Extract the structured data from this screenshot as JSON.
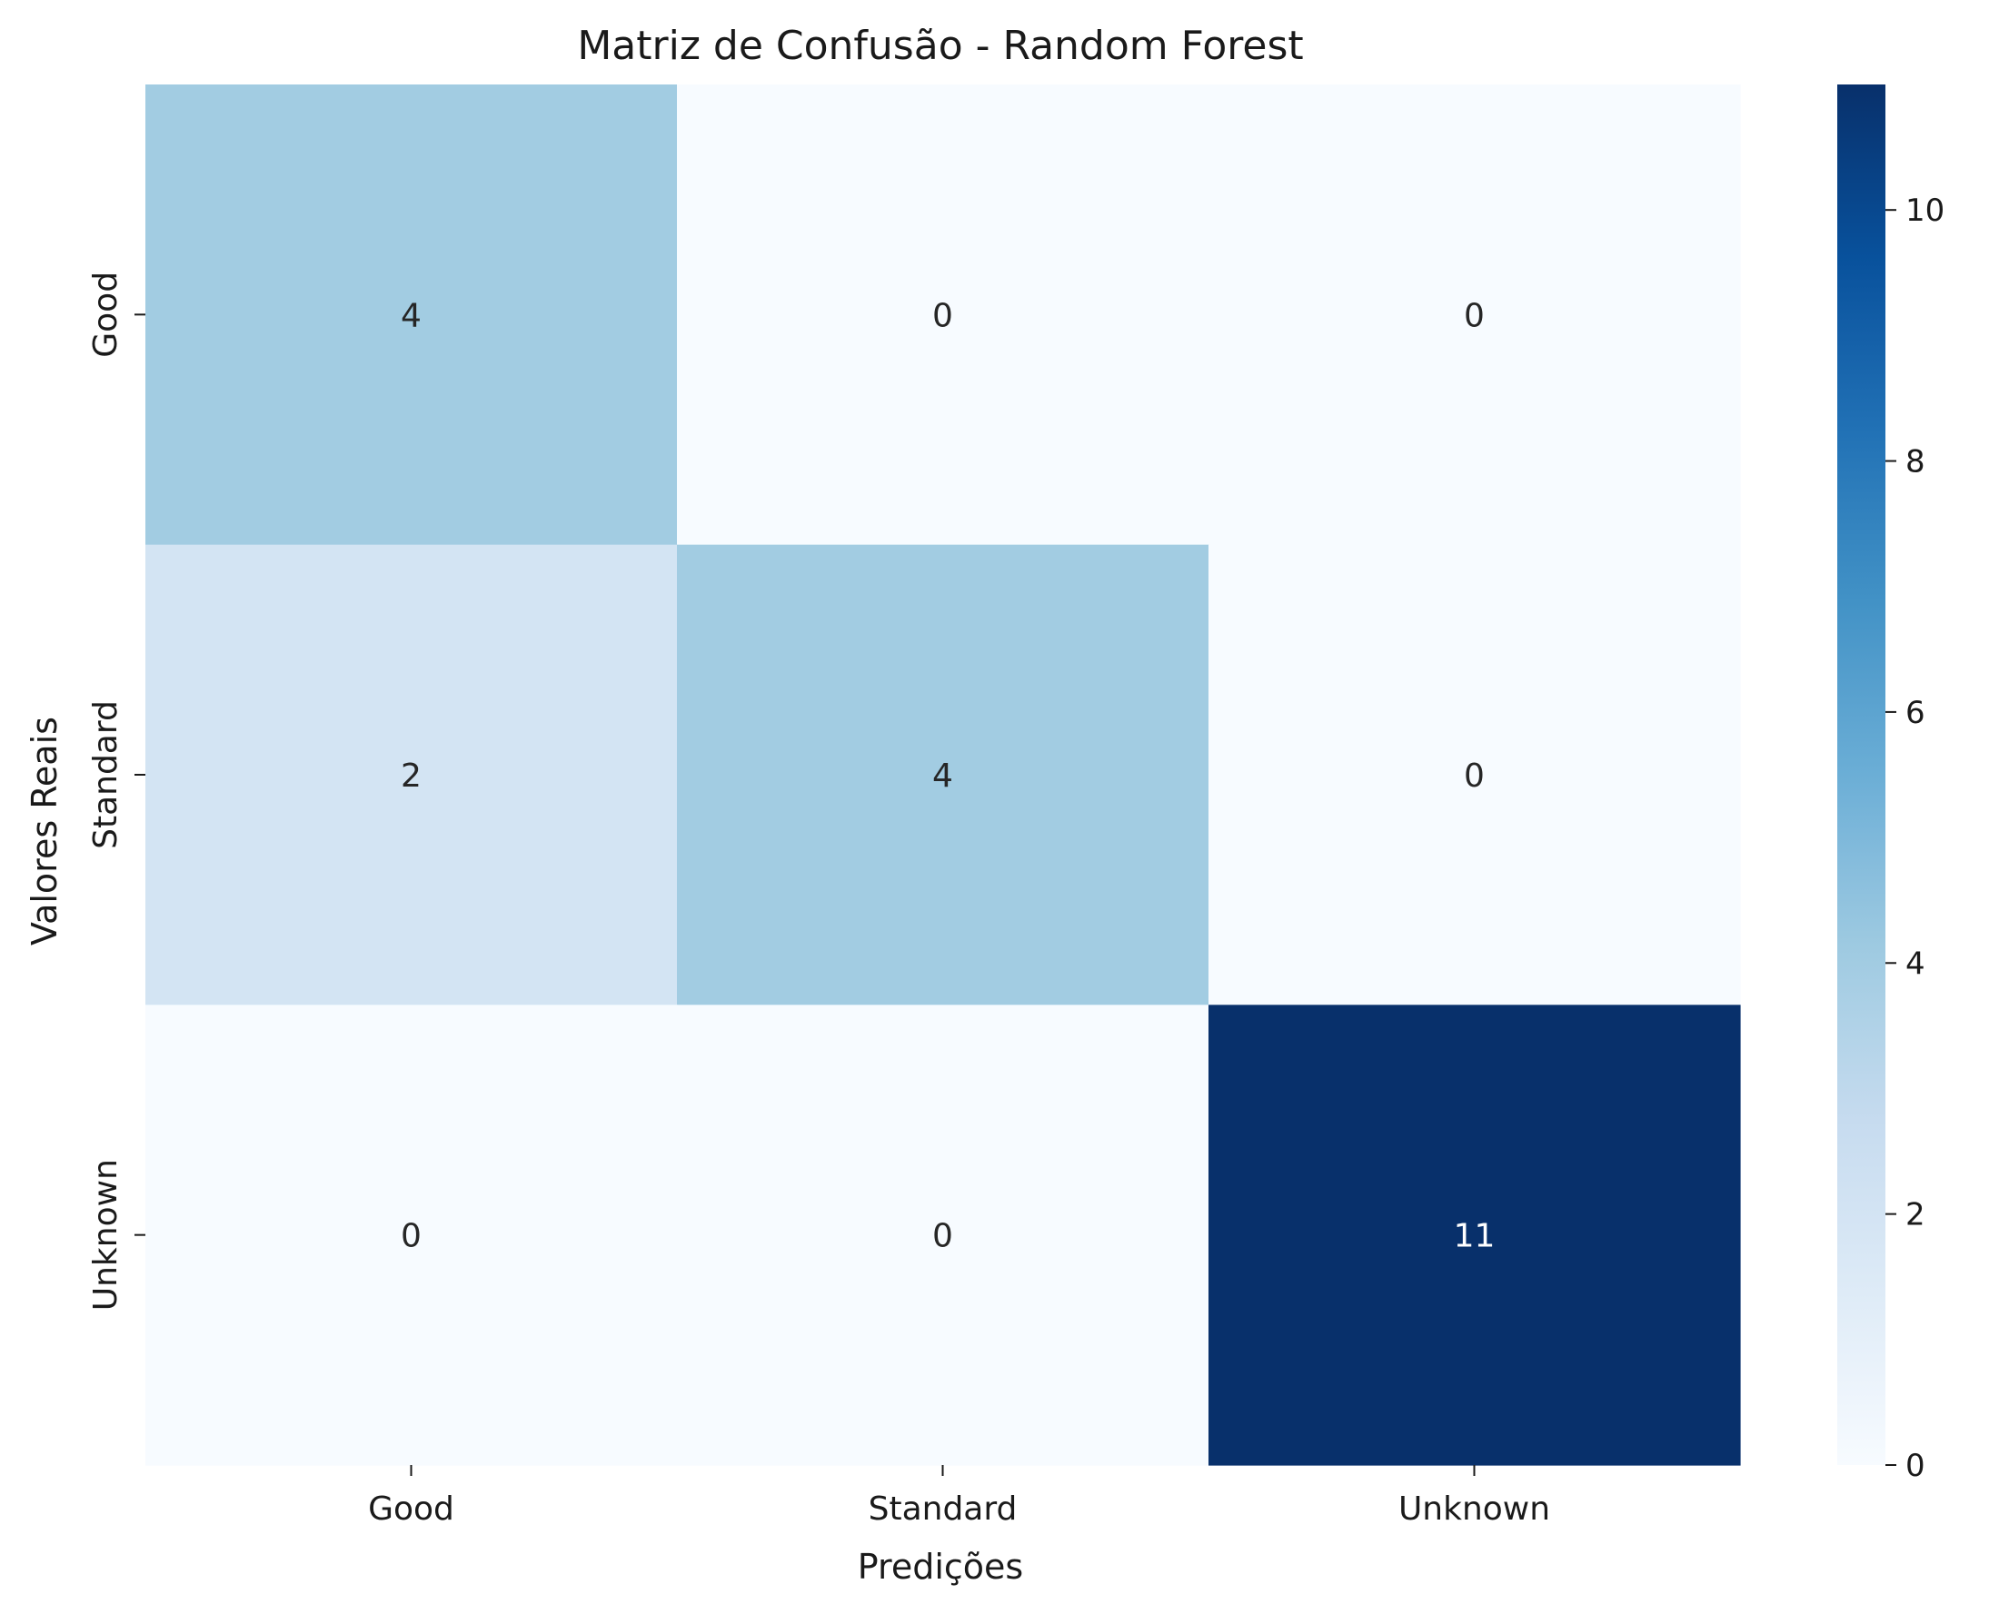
{
  "chart_data": {
    "type": "heatmap",
    "title": "Matriz de Confusão - Random Forest",
    "xlabel": "Predições",
    "ylabel": "Valores Reais",
    "x_categories": [
      "Good",
      "Standard",
      "Unknown"
    ],
    "y_categories": [
      "Good",
      "Standard",
      "Unknown"
    ],
    "values": [
      [
        4,
        0,
        0
      ],
      [
        2,
        4,
        0
      ],
      [
        0,
        0,
        11
      ]
    ],
    "colormap": "Blues",
    "colorbar": {
      "range": [
        0,
        11
      ],
      "ticks": [
        0,
        2,
        4,
        6,
        8,
        10
      ]
    },
    "colors": {
      "min": "#f7fbff",
      "max": "#08306b"
    }
  }
}
